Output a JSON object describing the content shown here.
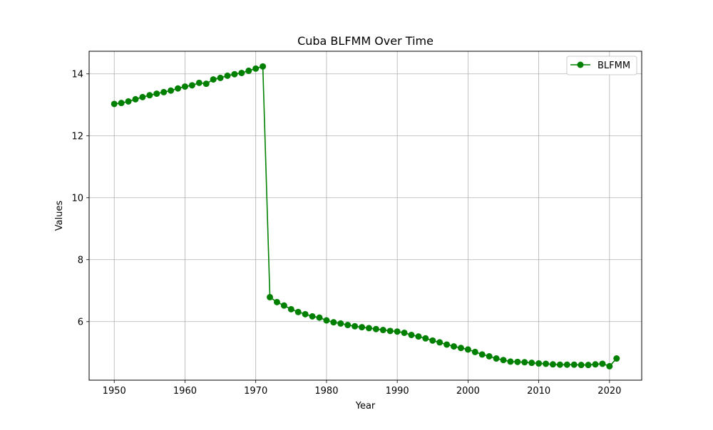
{
  "chart_data": {
    "type": "line",
    "title": "Cuba BLFMM Over Time",
    "xlabel": "Year",
    "ylabel": "Values",
    "xlim": [
      1946.45,
      2024.55
    ],
    "ylim": [
      4.11,
      14.73
    ],
    "xticks": [
      1950,
      1960,
      1970,
      1980,
      1990,
      2000,
      2010,
      2020
    ],
    "yticks": [
      6,
      8,
      10,
      12,
      14
    ],
    "grid": true,
    "legend_position": "top-right",
    "series": [
      {
        "name": "BLFMM",
        "color": "#008000",
        "marker": "circle",
        "x": [
          1950,
          1951,
          1952,
          1953,
          1954,
          1955,
          1956,
          1957,
          1958,
          1959,
          1960,
          1961,
          1962,
          1963,
          1964,
          1965,
          1966,
          1967,
          1968,
          1969,
          1970,
          1971,
          1972,
          1973,
          1974,
          1975,
          1976,
          1977,
          1978,
          1979,
          1980,
          1981,
          1982,
          1983,
          1984,
          1985,
          1986,
          1987,
          1988,
          1989,
          1990,
          1991,
          1992,
          1993,
          1994,
          1995,
          1996,
          1997,
          1998,
          1999,
          2000,
          2001,
          2002,
          2003,
          2004,
          2005,
          2006,
          2007,
          2008,
          2009,
          2010,
          2011,
          2012,
          2013,
          2014,
          2015,
          2016,
          2017,
          2018,
          2019,
          2020,
          2021
        ],
        "y": [
          13.03,
          13.06,
          13.11,
          13.18,
          13.25,
          13.31,
          13.36,
          13.41,
          13.46,
          13.53,
          13.59,
          13.63,
          13.71,
          13.68,
          13.82,
          13.87,
          13.94,
          13.99,
          14.03,
          14.1,
          14.17,
          14.24,
          6.79,
          6.63,
          6.52,
          6.4,
          6.31,
          6.24,
          6.17,
          6.13,
          6.04,
          5.98,
          5.94,
          5.89,
          5.85,
          5.82,
          5.79,
          5.76,
          5.73,
          5.7,
          5.68,
          5.64,
          5.57,
          5.52,
          5.46,
          5.39,
          5.33,
          5.26,
          5.2,
          5.15,
          5.1,
          5.02,
          4.94,
          4.88,
          4.81,
          4.76,
          4.71,
          4.7,
          4.69,
          4.67,
          4.65,
          4.64,
          4.62,
          4.61,
          4.61,
          4.61,
          4.6,
          4.6,
          4.62,
          4.64,
          4.56,
          4.81
        ]
      }
    ]
  }
}
